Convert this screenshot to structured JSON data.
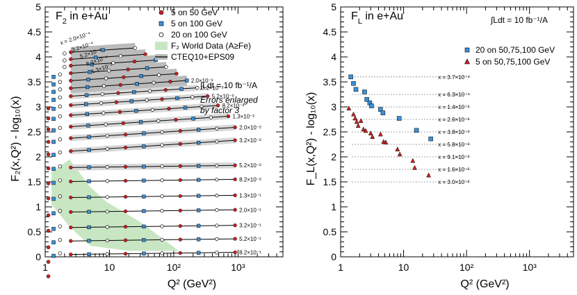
{
  "chart_data": [
    {
      "type": "scatter",
      "panel_title": "F",
      "panel_title_sub": "2",
      "panel_title_rest": " in e+Au",
      "xlabel": "Q² (GeV²)",
      "ylabel": "F₂(x,Q²) - log₁₀(x)",
      "xscale": "log",
      "xlim": [
        1,
        5000
      ],
      "ylim": [
        0,
        5
      ],
      "xticks": [
        "1",
        "10",
        "10²",
        "10³"
      ],
      "yticks": [
        "0",
        "0.5",
        "1",
        "1.5",
        "2",
        "2.5",
        "3",
        "3.5",
        "4",
        "4.5",
        "5"
      ],
      "legend": [
        {
          "label": "5 on 50 GeV",
          "marker": "circle",
          "color": "#cc2222"
        },
        {
          "label": "5 on 100 GeV",
          "marker": "square",
          "color": "#3d8fd6"
        },
        {
          "label": "20 on 100 GeV",
          "marker": "open-circle",
          "color": "#ffffff"
        },
        {
          "label": "F₂ World Data (A≥Fe)",
          "marker": "band",
          "color": "#c9e6c3"
        },
        {
          "label": "CTEQ10+EPS09",
          "marker": "line-band",
          "color": "#999999"
        }
      ],
      "annotations": [
        "∫Ldt = 10 fb⁻¹/A",
        "Errors enlarged",
        "by factor 3"
      ],
      "x_bins": [
        {
          "label": "x = 2.0×10⁻⁴",
          "y": 4.12
        },
        {
          "label": "3.2×10⁻⁴",
          "y": 3.98
        },
        {
          "label": "5.2×10⁻⁴",
          "y": 3.85
        },
        {
          "label": "8.2×10⁻⁴",
          "y": 3.7
        },
        {
          "label": "1.3×10⁻³",
          "y": 3.55
        },
        {
          "label": "2.0×10⁻³",
          "y": 3.4
        },
        {
          "label": "3.2×10⁻³",
          "y": 3.24
        },
        {
          "label": "5.2×10⁻³",
          "y": 3.06
        },
        {
          "label": "8.2×10⁻³",
          "y": 2.86
        },
        {
          "label": "1.3×10⁻²",
          "y": 2.63
        },
        {
          "label": "2.0×10⁻²",
          "y": 2.4
        },
        {
          "label": "3.2×10⁻²",
          "y": 2.14
        },
        {
          "label": "5.2×10⁻²",
          "y": 1.86
        },
        {
          "label": "8.2×10⁻²",
          "y": 1.58
        },
        {
          "label": "1.3×10⁻¹",
          "y": 1.26
        },
        {
          "label": "2.0×10⁻¹",
          "y": 0.97
        },
        {
          "label": "3.2×10⁻¹",
          "y": 0.66
        },
        {
          "label": "5.2×10⁻¹",
          "y": 0.39
        },
        {
          "label": "8.2×10⁻¹",
          "y": 0.12
        }
      ]
    },
    {
      "type": "scatter",
      "panel_title": "F",
      "panel_title_sub": "L",
      "panel_title_rest": " in e+Au",
      "xlabel": "Q² (GeV²)",
      "ylabel": "F_L(x,Q²) - log₁₀(x)",
      "xscale": "log",
      "xlim": [
        1,
        5000
      ],
      "ylim": [
        0,
        5
      ],
      "xticks": [
        "1",
        "10",
        "10²",
        "10³"
      ],
      "yticks": [
        "0",
        "0.5",
        "1",
        "1.5",
        "2",
        "2.5",
        "3",
        "3.5",
        "4",
        "4.5",
        "5"
      ],
      "legend": [
        {
          "label": "20 on 50,75,100 GeV",
          "marker": "square",
          "color": "#3d8fd6"
        },
        {
          "label": "5 on 50,75,100 GeV",
          "marker": "triangle",
          "color": "#cc2222"
        }
      ],
      "annotations": [
        "∫Ldt = 10 fb⁻¹/A"
      ],
      "bins": [
        {
          "label": "x = 3.7×10⁻⁴",
          "y": 3.6
        },
        {
          "label": "x = 6.3×10⁻⁴",
          "y": 3.25
        },
        {
          "label": "x = 1.4×10⁻³",
          "y": 3.0
        },
        {
          "label": "x = 2.6×10⁻³",
          "y": 2.75
        },
        {
          "label": "x = 3.8×10⁻³",
          "y": 2.5
        },
        {
          "label": "x = 5.8×10⁻³",
          "y": 2.25
        },
        {
          "label": "x = 9.1×10⁻³",
          "y": 2.0
        },
        {
          "label": "x = 1.6×10⁻²",
          "y": 1.75
        },
        {
          "label": "x = 3.0×10⁻²",
          "y": 1.5
        }
      ],
      "series": [
        {
          "name": "20 on 50,75,100 GeV",
          "points": [
            [
              1.45,
              3.6
            ],
            [
              1.6,
              3.47
            ],
            [
              1.75,
              3.35
            ],
            [
              2.4,
              3.3
            ],
            [
              2.6,
              3.15
            ],
            [
              2.9,
              3.08
            ],
            [
              3.1,
              3.02
            ],
            [
              4.3,
              2.95
            ],
            [
              4.7,
              2.88
            ],
            [
              8.5,
              2.77
            ],
            [
              16,
              2.53
            ],
            [
              27,
              2.36
            ]
          ]
        },
        {
          "name": "5 on 50,75,100 GeV",
          "points": [
            [
              1.35,
              2.97
            ],
            [
              1.6,
              2.85
            ],
            [
              1.7,
              2.77
            ],
            [
              1.8,
              2.7
            ],
            [
              1.9,
              2.62
            ],
            [
              2.1,
              2.72
            ],
            [
              2.3,
              2.55
            ],
            [
              2.5,
              2.52
            ],
            [
              3.0,
              2.47
            ],
            [
              3.2,
              2.4
            ],
            [
              4.3,
              2.45
            ],
            [
              4.8,
              2.3
            ],
            [
              5.2,
              2.29
            ],
            [
              8.0,
              2.15
            ],
            [
              8.7,
              2.05
            ],
            [
              14,
              1.92
            ],
            [
              15,
              1.78
            ],
            [
              25,
              1.63
            ]
          ]
        }
      ]
    }
  ]
}
